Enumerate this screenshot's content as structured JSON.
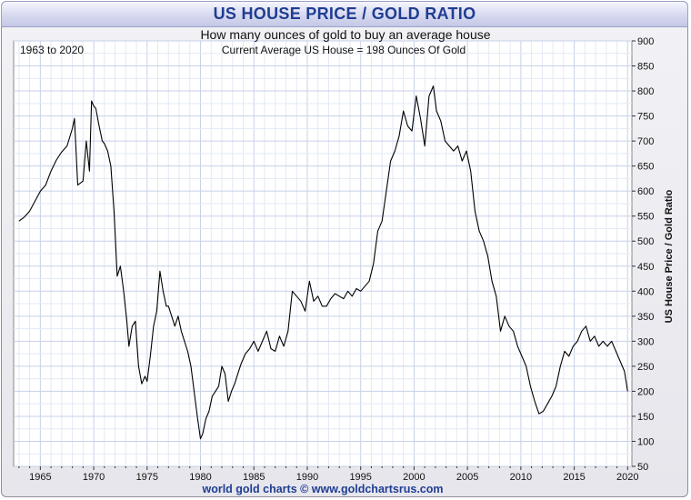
{
  "header": {
    "title": "US HOUSE PRICE / GOLD RATIO",
    "subtitle": "How many ounces of gold to buy an average house"
  },
  "footer": {
    "credit": "world gold charts © www.goldchartsrus.com"
  },
  "colors": {
    "title": "#1f3d92",
    "line": "#000000",
    "grid": "#d8e0f0",
    "plot_background": "#ffffff",
    "frame": "#e8e8ee"
  },
  "chart_data": {
    "type": "line",
    "title": "US HOUSE PRICE / GOLD RATIO",
    "subtitle": "How many ounces of gold to buy an average house",
    "annotations": [
      "1963 to 2020",
      "Current Average US House = 198 Ounces Of Gold"
    ],
    "ylabel": "US House Price / Gold Ratio",
    "xlabel": "",
    "xlim": [
      1962.5,
      2020.4
    ],
    "ylim": [
      50,
      900
    ],
    "x_ticks": [
      1965,
      1970,
      1975,
      1980,
      1985,
      1990,
      1995,
      2000,
      2005,
      2010,
      2015,
      2020
    ],
    "y_ticks": [
      50,
      100,
      150,
      200,
      250,
      300,
      350,
      400,
      450,
      500,
      550,
      600,
      650,
      700,
      750,
      800,
      850,
      900
    ],
    "y_axis_side": "right",
    "grid": true,
    "series": [
      {
        "x": [
          1963.0,
          1963.5,
          1964.0,
          1964.5,
          1965.0,
          1965.5,
          1966.0,
          1966.5,
          1967.0,
          1967.5,
          1968.0,
          1968.2,
          1968.5,
          1969.0,
          1969.3,
          1969.6,
          1969.8,
          1970.0,
          1970.2,
          1970.5,
          1970.8,
          1971.0,
          1971.3,
          1971.6,
          1971.9,
          1972.2,
          1972.5,
          1972.8,
          1973.1,
          1973.3,
          1973.6,
          1973.9,
          1974.2,
          1974.5,
          1974.8,
          1975.0,
          1975.3,
          1975.6,
          1975.9,
          1976.2,
          1976.5,
          1976.8,
          1977.0,
          1977.3,
          1977.6,
          1977.9,
          1978.2,
          1978.5,
          1978.8,
          1979.1,
          1979.4,
          1979.7,
          1980.0,
          1980.2,
          1980.5,
          1980.8,
          1981.1,
          1981.4,
          1981.7,
          1982.0,
          1982.3,
          1982.6,
          1982.9,
          1983.2,
          1983.5,
          1983.8,
          1984.2,
          1984.6,
          1985.0,
          1985.4,
          1985.8,
          1986.2,
          1986.6,
          1987.0,
          1987.4,
          1987.8,
          1988.2,
          1988.6,
          1989.0,
          1989.4,
          1989.8,
          1990.2,
          1990.6,
          1991.0,
          1991.4,
          1991.8,
          1992.2,
          1992.6,
          1993.0,
          1993.4,
          1993.8,
          1994.2,
          1994.6,
          1995.0,
          1995.4,
          1995.8,
          1996.2,
          1996.6,
          1997.0,
          1997.4,
          1997.8,
          1998.2,
          1998.6,
          1999.0,
          1999.4,
          1999.8,
          2000.2,
          2000.6,
          2001.0,
          2001.4,
          2001.8,
          2002.1,
          2002.5,
          2002.9,
          2003.3,
          2003.7,
          2004.1,
          2004.5,
          2004.9,
          2005.3,
          2005.7,
          2006.1,
          2006.5,
          2006.9,
          2007.3,
          2007.7,
          2008.1,
          2008.5,
          2008.9,
          2009.3,
          2009.7,
          2010.1,
          2010.5,
          2010.9,
          2011.3,
          2011.7,
          2012.1,
          2012.5,
          2012.9,
          2013.3,
          2013.7,
          2014.1,
          2014.5,
          2014.9,
          2015.3,
          2015.7,
          2016.1,
          2016.5,
          2016.9,
          2017.3,
          2017.7,
          2018.1,
          2018.5,
          2018.9,
          2019.3,
          2019.7,
          2020.0
        ],
        "values": [
          540,
          548,
          560,
          580,
          600,
          612,
          640,
          662,
          678,
          690,
          725,
          745,
          612,
          620,
          700,
          640,
          780,
          770,
          765,
          730,
          700,
          695,
          680,
          650,
          560,
          430,
          450,
          400,
          340,
          290,
          330,
          340,
          250,
          215,
          230,
          220,
          270,
          330,
          360,
          440,
          400,
          370,
          370,
          350,
          330,
          350,
          320,
          300,
          280,
          250,
          200,
          150,
          105,
          115,
          145,
          160,
          190,
          200,
          210,
          250,
          235,
          180,
          200,
          215,
          235,
          255,
          275,
          285,
          300,
          280,
          300,
          320,
          285,
          280,
          310,
          290,
          320,
          400,
          390,
          380,
          360,
          420,
          380,
          390,
          370,
          370,
          385,
          395,
          390,
          385,
          400,
          390,
          405,
          400,
          410,
          420,
          455,
          520,
          540,
          600,
          660,
          680,
          710,
          760,
          730,
          720,
          790,
          745,
          690,
          790,
          810,
          760,
          740,
          700,
          690,
          680,
          690,
          660,
          680,
          640,
          560,
          520,
          500,
          470,
          420,
          390,
          320,
          350,
          330,
          320,
          290,
          270,
          250,
          210,
          180,
          155,
          160,
          175,
          190,
          210,
          250,
          280,
          270,
          290,
          300,
          320,
          330,
          300,
          310,
          290,
          300,
          290,
          300,
          280,
          260,
          240,
          200
        ]
      }
    ]
  }
}
